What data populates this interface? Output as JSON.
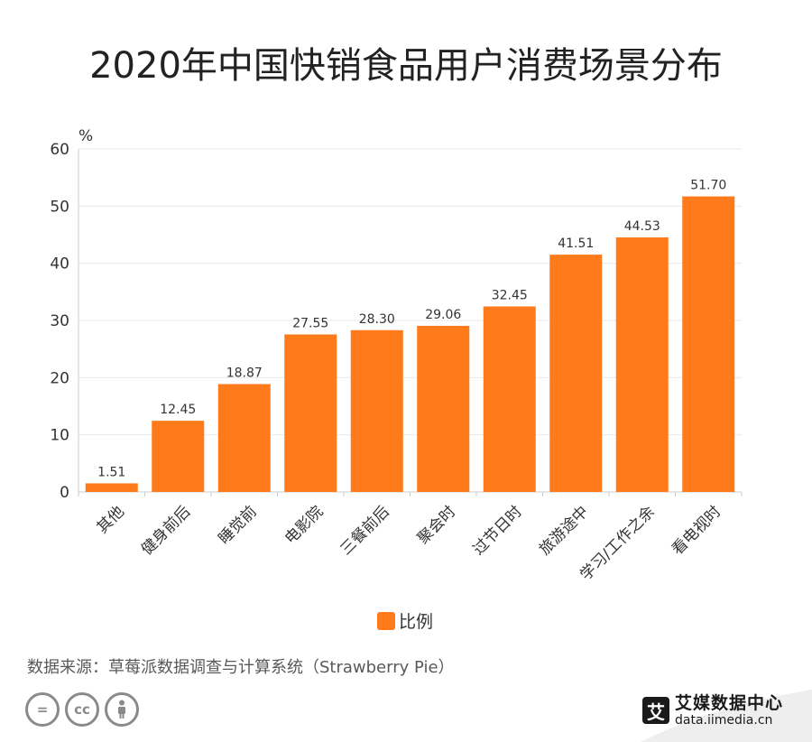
{
  "title": "2020年中国快销食品用户消费场景分布",
  "chart_data": {
    "type": "bar",
    "title": "2020年中国快销食品用户消费场景分布",
    "ylabel": "%",
    "xlabel": "",
    "ylim": [
      0,
      60
    ],
    "yticks": [
      0,
      10,
      20,
      30,
      40,
      50,
      60
    ],
    "categories": [
      "其他",
      "健身前后",
      "睡觉前",
      "电影院",
      "三餐前后",
      "聚会时",
      "过节日时",
      "旅游途中",
      "学习/工作之余",
      "看电视时"
    ],
    "series": [
      {
        "name": "比例",
        "values": [
          1.51,
          12.45,
          18.87,
          27.55,
          28.3,
          29.06,
          32.45,
          41.51,
          44.53,
          51.7
        ],
        "labels": [
          "1.51",
          "12.45",
          "18.87",
          "27.55",
          "28.30",
          "29.06",
          "32.45",
          "41.51",
          "44.53",
          "51.70"
        ]
      }
    ],
    "grid": true,
    "legend": "bottom",
    "bar_color": "#ff7a1a"
  },
  "legend": {
    "label": "比例"
  },
  "source": "数据来源：草莓派数据调查与计算系统（Strawberry Pie）",
  "license_icons": [
    "equals-icon",
    "cc-icon",
    "person-icon"
  ],
  "license_texts": [
    "=",
    "cc"
  ],
  "brand": {
    "mark": "艾",
    "name": "艾媒数据中心",
    "url": "data.iimedia.cn"
  }
}
